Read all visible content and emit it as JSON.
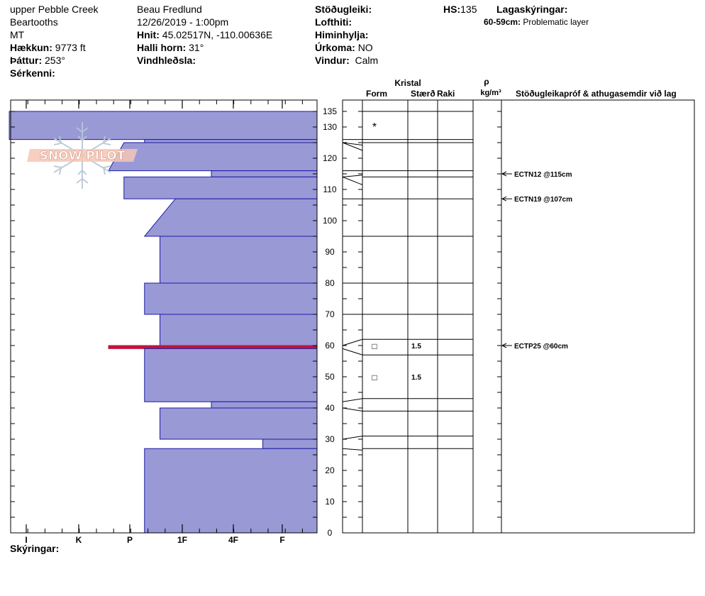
{
  "header": {
    "location": "upper Pebble Creek",
    "range": "Beartooths",
    "state": "MT",
    "elevation_label": "Hækkun:",
    "elevation_value": "9773 ft",
    "aspect_label": "Þáttur:",
    "aspect_value": "253°",
    "features_label": "Sérkenni:",
    "observer": "Beau  Fredlund",
    "datetime": "12/26/2019 - 1:00pm",
    "coords_label": "Hnit:",
    "coords_value": "45.02517N, -110.00636E",
    "slope_label": "Halli horn:",
    "slope_value": "31°",
    "wind_loading_label": "Vindhleðsla:",
    "stability_label": "Stöðugleiki:",
    "air_temp_label": "Lofthiti:",
    "sky_label": "Himinhylja:",
    "precip_label": "Úrkoma:",
    "precip_value": "NO",
    "wind_label": "Vindur:",
    "wind_value": "Calm",
    "hs_label": "HS:",
    "hs_value": "135",
    "layer_notes_label": "Lagaskýringar:",
    "layer_note_range": "60-59cm:",
    "layer_note_text": "Problematic layer"
  },
  "logo_text": "SNOW PILOT",
  "legend_label": "Skýringar:",
  "columns": {
    "crystal_group": "Kristal",
    "form": "Form",
    "size": "Stærð",
    "moisture": "Raki",
    "density_symbol": "ρ",
    "density_unit": "kg/m³",
    "comments": "Stöðugleikapróf & athugasemdir við lag"
  },
  "colors": {
    "hardness_fill": "#9999d6",
    "hardness_stroke": "#1a1aa6",
    "problem_layer": "#c0143c",
    "line": "#000000"
  },
  "chart_data": {
    "type": "snow_profile",
    "y_axis": {
      "ylim": [
        0,
        135
      ],
      "ticks": [
        0,
        10,
        20,
        30,
        40,
        50,
        60,
        70,
        80,
        90,
        100,
        110,
        120,
        130,
        135
      ]
    },
    "hardness_scale": [
      "I",
      "K",
      "P",
      "1F",
      "4F",
      "F"
    ],
    "hardness_layers": [
      {
        "top": 135,
        "bottom": 126,
        "h_top": -0.33,
        "h_bottom": -0.33
      },
      {
        "top": 126,
        "bottom": 125,
        "h_top": 2.3,
        "h_bottom": 2.3
      },
      {
        "top": 125,
        "bottom": 116,
        "h_top": 1.9,
        "h_bottom": 1.6
      },
      {
        "top": 116,
        "bottom": 114,
        "h_top": 3.6,
        "h_bottom": 3.6
      },
      {
        "top": 114,
        "bottom": 107,
        "h_top": 1.9,
        "h_bottom": 1.9
      },
      {
        "top": 107,
        "bottom": 95,
        "h_top": 2.9,
        "h_bottom": 2.3
      },
      {
        "top": 95,
        "bottom": 80,
        "h_top": 2.6,
        "h_bottom": 2.6
      },
      {
        "top": 80,
        "bottom": 70,
        "h_top": 2.3,
        "h_bottom": 2.3
      },
      {
        "top": 70,
        "bottom": 60,
        "h_top": 2.6,
        "h_bottom": 2.6
      },
      {
        "top": 60,
        "bottom": 59,
        "h_top": 1.6,
        "h_bottom": 1.6,
        "problem": true
      },
      {
        "top": 59,
        "bottom": 42,
        "h_top": 2.3,
        "h_bottom": 2.3
      },
      {
        "top": 42,
        "bottom": 40,
        "h_top": 3.6,
        "h_bottom": 3.6
      },
      {
        "top": 40,
        "bottom": 30,
        "h_top": 2.6,
        "h_bottom": 2.6
      },
      {
        "top": 30,
        "bottom": 27,
        "h_top": 4.6,
        "h_bottom": 4.6
      },
      {
        "top": 27,
        "bottom": 0,
        "h_top": 2.3,
        "h_bottom": 2.3
      }
    ],
    "layer_boundaries": [
      135,
      126,
      125,
      116,
      114,
      107,
      95,
      80,
      70,
      62,
      57,
      43,
      39,
      31,
      27
    ],
    "crystal_rows": [
      {
        "height": 130,
        "form": "*",
        "size": ""
      },
      {
        "height": 60,
        "form": "□",
        "size": "1.5"
      },
      {
        "height": 50,
        "form": "□",
        "size": "1.5"
      }
    ],
    "tests": [
      {
        "height": 115,
        "text": "ECTN12 @115cm"
      },
      {
        "height": 107,
        "text": "ECTN19 @107cm"
      },
      {
        "height": 60,
        "text": "ECTP25 @60cm"
      }
    ]
  }
}
